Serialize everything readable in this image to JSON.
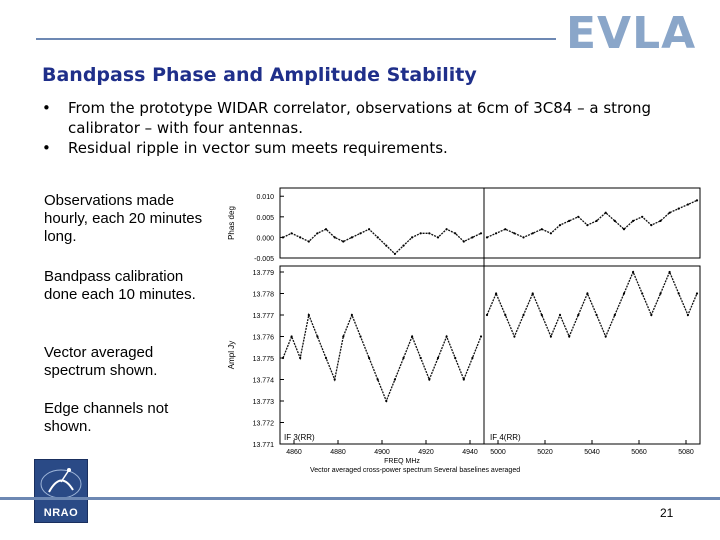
{
  "logo_text": "EVLA",
  "title": "Bandpass Phase and Amplitude Stability",
  "bullets": [
    "From the prototype WIDAR correlator, observations at 6cm of 3C84 – a strong calibrator – with four antennas.",
    "Residual ripple in vector sum meets requirements."
  ],
  "sidebar_notes": [
    "Observations made hourly, each 20 minutes long.",
    "Bandpass calibration done each 10 minutes.",
    "Vector averaged spectrum shown.",
    "Edge channels not shown."
  ],
  "page_number": "21",
  "nrao_label": "NRAO",
  "chart_data": {
    "type": "line",
    "phase_panel": {
      "ylabel": "Phas deg",
      "yticks": [
        "0.010",
        "0.005",
        "0.000",
        "-0.005"
      ],
      "ylim": [
        -0.005,
        0.012
      ]
    },
    "amplitude_panel": {
      "ylabel": "Ampl Jy",
      "yticks": [
        "13.779",
        "13.778",
        "13.777",
        "13.776",
        "13.775",
        "13.774",
        "13.773",
        "13.772",
        "13.771"
      ],
      "ylim": [
        13.771,
        13.779
      ]
    },
    "left_xticks": [
      "4860",
      "4880",
      "4900",
      "4920",
      "4940"
    ],
    "right_xticks": [
      "5000",
      "5020",
      "5040",
      "5060",
      "5080"
    ],
    "xlabel": "FREQ MHz",
    "panel_labels": [
      "IF 3(RR)",
      "IF 4(RR)"
    ],
    "caption": "Vector averaged cross-power spectrum    Several baselines averaged",
    "series": [
      {
        "panel": "phase-left",
        "values": [
          0.0,
          0.001,
          0.0,
          -0.001,
          0.001,
          0.002,
          0.0,
          -0.001,
          0.0,
          0.001,
          0.002,
          0.0,
          -0.002,
          -0.004,
          -0.002,
          0.0,
          0.001,
          0.001,
          0.0,
          0.002,
          0.001,
          -0.001,
          0.0,
          0.001
        ]
      },
      {
        "panel": "phase-right",
        "values": [
          0.0,
          0.001,
          0.002,
          0.001,
          0.0,
          0.001,
          0.002,
          0.001,
          0.003,
          0.004,
          0.005,
          0.003,
          0.004,
          0.006,
          0.004,
          0.002,
          0.004,
          0.005,
          0.003,
          0.004,
          0.006,
          0.007,
          0.008,
          0.009
        ]
      },
      {
        "panel": "amp-left",
        "values": [
          13.775,
          13.776,
          13.775,
          13.777,
          13.776,
          13.775,
          13.774,
          13.776,
          13.777,
          13.776,
          13.775,
          13.774,
          13.773,
          13.774,
          13.775,
          13.776,
          13.775,
          13.774,
          13.775,
          13.776,
          13.775,
          13.774,
          13.775,
          13.776
        ]
      },
      {
        "panel": "amp-right",
        "values": [
          13.777,
          13.778,
          13.777,
          13.776,
          13.777,
          13.778,
          13.777,
          13.776,
          13.777,
          13.776,
          13.777,
          13.778,
          13.777,
          13.776,
          13.777,
          13.778,
          13.779,
          13.778,
          13.777,
          13.778,
          13.779,
          13.778,
          13.777,
          13.778
        ]
      }
    ]
  }
}
